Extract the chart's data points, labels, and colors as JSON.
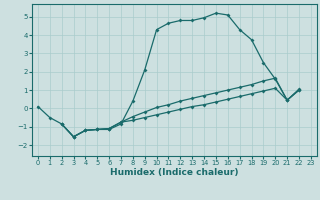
{
  "xlabel": "Humidex (Indice chaleur)",
  "xlim": [
    -0.5,
    23.5
  ],
  "ylim": [
    -2.6,
    5.7
  ],
  "yticks": [
    -2,
    -1,
    0,
    1,
    2,
    3,
    4,
    5
  ],
  "xticks": [
    0,
    1,
    2,
    3,
    4,
    5,
    6,
    7,
    8,
    9,
    10,
    11,
    12,
    13,
    14,
    15,
    16,
    17,
    18,
    19,
    20,
    21,
    22,
    23
  ],
  "bg_color": "#cde0e0",
  "grid_color": "#aacccc",
  "line_color": "#1a6b6b",
  "line1": {
    "x": [
      0,
      1,
      2,
      3,
      4,
      5,
      6,
      7,
      8,
      9,
      10,
      11,
      12,
      13,
      14,
      15,
      16,
      17,
      18,
      19,
      20,
      21,
      22
    ],
    "y": [
      0.1,
      -0.5,
      -0.85,
      -1.55,
      -1.2,
      -1.15,
      -1.15,
      -0.85,
      0.4,
      2.1,
      4.3,
      4.65,
      4.8,
      4.8,
      4.95,
      5.2,
      5.1,
      4.3,
      3.75,
      2.5,
      1.6,
      0.45,
      1.05
    ]
  },
  "line3": {
    "x": [
      2,
      3,
      4,
      5,
      6,
      7,
      8,
      9,
      10,
      11,
      12,
      13,
      14,
      15,
      16,
      17,
      18,
      19,
      20,
      21,
      22
    ],
    "y": [
      -0.85,
      -1.55,
      -1.2,
      -1.15,
      -1.1,
      -0.75,
      -0.45,
      -0.2,
      0.05,
      0.2,
      0.4,
      0.55,
      0.7,
      0.85,
      1.0,
      1.15,
      1.3,
      1.5,
      1.65,
      0.45,
      1.0
    ]
  },
  "line4": {
    "x": [
      2,
      3,
      4,
      5,
      6,
      7,
      8,
      9,
      10,
      11,
      12,
      13,
      14,
      15,
      16,
      17,
      18,
      19,
      20,
      21,
      22
    ],
    "y": [
      -0.85,
      -1.55,
      -1.2,
      -1.15,
      -1.1,
      -0.75,
      -0.65,
      -0.5,
      -0.35,
      -0.2,
      -0.05,
      0.1,
      0.2,
      0.35,
      0.5,
      0.65,
      0.8,
      0.95,
      1.1,
      0.45,
      1.0
    ]
  }
}
